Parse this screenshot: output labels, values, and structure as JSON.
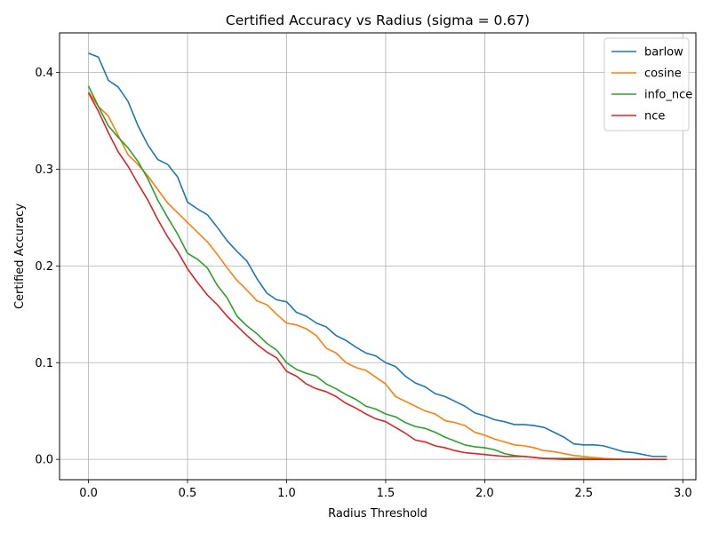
{
  "chart_data": {
    "type": "line",
    "title": "Certified Accuracy vs Radius (sigma = 0.67)",
    "xlabel": "Radius Threshold",
    "ylabel": "Certified Accuracy",
    "xlim": [
      -0.146,
      3.066
    ],
    "ylim": [
      -0.021,
      0.441
    ],
    "xticks": [
      0.0,
      0.5,
      1.0,
      1.5,
      2.0,
      2.5,
      3.0
    ],
    "xtick_labels": [
      "0.0",
      "0.5",
      "1.0",
      "1.5",
      "2.0",
      "2.5",
      "3.0"
    ],
    "yticks": [
      0.0,
      0.1,
      0.2,
      0.3,
      0.4
    ],
    "ytick_labels": [
      "0.0",
      "0.1",
      "0.2",
      "0.3",
      "0.4"
    ],
    "grid": true,
    "legend_position": "top-right",
    "series": [
      {
        "name": "barlow",
        "color": "#1f77b4",
        "points": [
          [
            0.0,
            0.42
          ],
          [
            0.05,
            0.416
          ],
          [
            0.1,
            0.392
          ],
          [
            0.15,
            0.385
          ],
          [
            0.2,
            0.37
          ],
          [
            0.25,
            0.345
          ],
          [
            0.3,
            0.325
          ],
          [
            0.35,
            0.31
          ],
          [
            0.4,
            0.305
          ],
          [
            0.45,
            0.292
          ],
          [
            0.5,
            0.266
          ],
          [
            0.55,
            0.259
          ],
          [
            0.6,
            0.253
          ],
          [
            0.65,
            0.24
          ],
          [
            0.7,
            0.226
          ],
          [
            0.75,
            0.215
          ],
          [
            0.8,
            0.205
          ],
          [
            0.85,
            0.187
          ],
          [
            0.9,
            0.172
          ],
          [
            0.95,
            0.165
          ],
          [
            1.0,
            0.163
          ],
          [
            1.05,
            0.152
          ],
          [
            1.1,
            0.148
          ],
          [
            1.15,
            0.141
          ],
          [
            1.2,
            0.137
          ],
          [
            1.25,
            0.128
          ],
          [
            1.3,
            0.123
          ],
          [
            1.35,
            0.116
          ],
          [
            1.4,
            0.11
          ],
          [
            1.45,
            0.107
          ],
          [
            1.5,
            0.1
          ],
          [
            1.55,
            0.096
          ],
          [
            1.6,
            0.086
          ],
          [
            1.65,
            0.079
          ],
          [
            1.7,
            0.075
          ],
          [
            1.75,
            0.068
          ],
          [
            1.8,
            0.065
          ],
          [
            1.85,
            0.06
          ],
          [
            1.9,
            0.055
          ],
          [
            1.95,
            0.048
          ],
          [
            2.0,
            0.045
          ],
          [
            2.05,
            0.041
          ],
          [
            2.1,
            0.039
          ],
          [
            2.15,
            0.036
          ],
          [
            2.2,
            0.036
          ],
          [
            2.25,
            0.035
          ],
          [
            2.3,
            0.033
          ],
          [
            2.35,
            0.028
          ],
          [
            2.4,
            0.023
          ],
          [
            2.45,
            0.016
          ],
          [
            2.5,
            0.015
          ],
          [
            2.55,
            0.015
          ],
          [
            2.6,
            0.014
          ],
          [
            2.65,
            0.011
          ],
          [
            2.7,
            0.008
          ],
          [
            2.75,
            0.007
          ],
          [
            2.8,
            0.005
          ],
          [
            2.85,
            0.003
          ],
          [
            2.92,
            0.003
          ]
        ]
      },
      {
        "name": "cosine",
        "color": "#ff7f0e",
        "points": [
          [
            0.0,
            0.38
          ],
          [
            0.05,
            0.365
          ],
          [
            0.1,
            0.355
          ],
          [
            0.15,
            0.335
          ],
          [
            0.2,
            0.315
          ],
          [
            0.25,
            0.305
          ],
          [
            0.3,
            0.293
          ],
          [
            0.35,
            0.279
          ],
          [
            0.4,
            0.265
          ],
          [
            0.45,
            0.255
          ],
          [
            0.5,
            0.245
          ],
          [
            0.55,
            0.235
          ],
          [
            0.6,
            0.225
          ],
          [
            0.65,
            0.212
          ],
          [
            0.7,
            0.198
          ],
          [
            0.75,
            0.185
          ],
          [
            0.8,
            0.175
          ],
          [
            0.85,
            0.164
          ],
          [
            0.9,
            0.16
          ],
          [
            0.95,
            0.15
          ],
          [
            1.0,
            0.141
          ],
          [
            1.05,
            0.139
          ],
          [
            1.1,
            0.135
          ],
          [
            1.15,
            0.128
          ],
          [
            1.2,
            0.115
          ],
          [
            1.25,
            0.11
          ],
          [
            1.3,
            0.1
          ],
          [
            1.35,
            0.095
          ],
          [
            1.4,
            0.092
          ],
          [
            1.45,
            0.085
          ],
          [
            1.5,
            0.078
          ],
          [
            1.55,
            0.065
          ],
          [
            1.6,
            0.06
          ],
          [
            1.65,
            0.055
          ],
          [
            1.7,
            0.05
          ],
          [
            1.75,
            0.047
          ],
          [
            1.8,
            0.04
          ],
          [
            1.85,
            0.038
          ],
          [
            1.9,
            0.035
          ],
          [
            1.95,
            0.028
          ],
          [
            2.0,
            0.025
          ],
          [
            2.05,
            0.021
          ],
          [
            2.1,
            0.018
          ],
          [
            2.15,
            0.015
          ],
          [
            2.2,
            0.014
          ],
          [
            2.25,
            0.012
          ],
          [
            2.3,
            0.009
          ],
          [
            2.35,
            0.008
          ],
          [
            2.4,
            0.006
          ],
          [
            2.45,
            0.004
          ],
          [
            2.5,
            0.003
          ],
          [
            2.6,
            0.001
          ],
          [
            2.7,
            0.0
          ],
          [
            2.8,
            0.0
          ],
          [
            2.92,
            0.0
          ]
        ]
      },
      {
        "name": "info_nce",
        "color": "#2ca02c",
        "points": [
          [
            0.0,
            0.386
          ],
          [
            0.05,
            0.365
          ],
          [
            0.1,
            0.345
          ],
          [
            0.15,
            0.333
          ],
          [
            0.2,
            0.322
          ],
          [
            0.25,
            0.308
          ],
          [
            0.3,
            0.29
          ],
          [
            0.35,
            0.268
          ],
          [
            0.4,
            0.25
          ],
          [
            0.45,
            0.233
          ],
          [
            0.5,
            0.213
          ],
          [
            0.55,
            0.207
          ],
          [
            0.6,
            0.198
          ],
          [
            0.65,
            0.18
          ],
          [
            0.7,
            0.167
          ],
          [
            0.75,
            0.148
          ],
          [
            0.8,
            0.138
          ],
          [
            0.85,
            0.13
          ],
          [
            0.9,
            0.12
          ],
          [
            0.95,
            0.113
          ],
          [
            1.0,
            0.1
          ],
          [
            1.05,
            0.093
          ],
          [
            1.1,
            0.089
          ],
          [
            1.15,
            0.086
          ],
          [
            1.2,
            0.078
          ],
          [
            1.25,
            0.073
          ],
          [
            1.3,
            0.067
          ],
          [
            1.35,
            0.062
          ],
          [
            1.4,
            0.055
          ],
          [
            1.45,
            0.052
          ],
          [
            1.5,
            0.047
          ],
          [
            1.55,
            0.044
          ],
          [
            1.6,
            0.038
          ],
          [
            1.65,
            0.034
          ],
          [
            1.7,
            0.032
          ],
          [
            1.75,
            0.028
          ],
          [
            1.8,
            0.023
          ],
          [
            1.85,
            0.019
          ],
          [
            1.9,
            0.015
          ],
          [
            1.95,
            0.013
          ],
          [
            2.0,
            0.012
          ],
          [
            2.05,
            0.01
          ],
          [
            2.1,
            0.006
          ],
          [
            2.15,
            0.004
          ],
          [
            2.2,
            0.003
          ],
          [
            2.25,
            0.002
          ],
          [
            2.3,
            0.001
          ],
          [
            2.4,
            0.001
          ],
          [
            2.5,
            0.001
          ],
          [
            2.6,
            0.0
          ],
          [
            2.7,
            0.0
          ],
          [
            2.8,
            0.0
          ],
          [
            2.92,
            0.0
          ]
        ]
      },
      {
        "name": "nce",
        "color": "#d62728",
        "points": [
          [
            0.0,
            0.379
          ],
          [
            0.05,
            0.36
          ],
          [
            0.1,
            0.338
          ],
          [
            0.15,
            0.318
          ],
          [
            0.2,
            0.303
          ],
          [
            0.25,
            0.285
          ],
          [
            0.3,
            0.268
          ],
          [
            0.35,
            0.248
          ],
          [
            0.4,
            0.23
          ],
          [
            0.45,
            0.215
          ],
          [
            0.5,
            0.197
          ],
          [
            0.55,
            0.183
          ],
          [
            0.6,
            0.17
          ],
          [
            0.65,
            0.16
          ],
          [
            0.7,
            0.148
          ],
          [
            0.75,
            0.138
          ],
          [
            0.8,
            0.128
          ],
          [
            0.85,
            0.119
          ],
          [
            0.9,
            0.111
          ],
          [
            0.95,
            0.105
          ],
          [
            1.0,
            0.091
          ],
          [
            1.05,
            0.086
          ],
          [
            1.1,
            0.078
          ],
          [
            1.15,
            0.073
          ],
          [
            1.2,
            0.07
          ],
          [
            1.25,
            0.065
          ],
          [
            1.3,
            0.058
          ],
          [
            1.35,
            0.053
          ],
          [
            1.4,
            0.047
          ],
          [
            1.45,
            0.042
          ],
          [
            1.5,
            0.039
          ],
          [
            1.55,
            0.033
          ],
          [
            1.6,
            0.027
          ],
          [
            1.65,
            0.02
          ],
          [
            1.7,
            0.018
          ],
          [
            1.75,
            0.014
          ],
          [
            1.8,
            0.012
          ],
          [
            1.85,
            0.009
          ],
          [
            1.9,
            0.007
          ],
          [
            1.95,
            0.006
          ],
          [
            2.0,
            0.005
          ],
          [
            2.05,
            0.004
          ],
          [
            2.1,
            0.003
          ],
          [
            2.15,
            0.003
          ],
          [
            2.2,
            0.003
          ],
          [
            2.25,
            0.002
          ],
          [
            2.3,
            0.001
          ],
          [
            2.4,
            0.0
          ],
          [
            2.5,
            0.0
          ],
          [
            2.6,
            0.0
          ],
          [
            2.7,
            0.0
          ],
          [
            2.8,
            0.0
          ],
          [
            2.92,
            0.0
          ]
        ]
      }
    ]
  }
}
